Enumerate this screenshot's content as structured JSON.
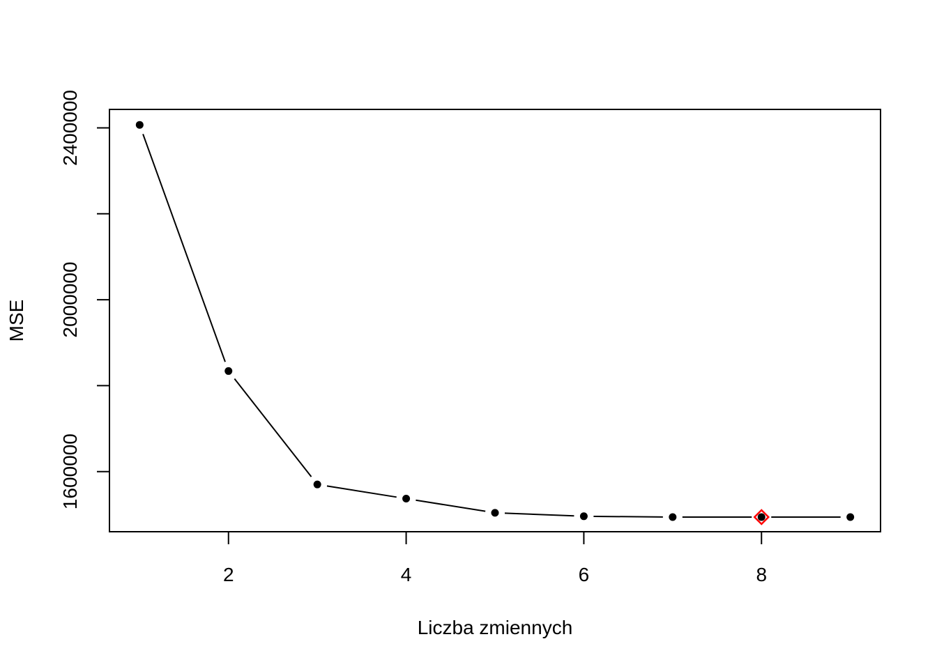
{
  "chart_data": {
    "type": "line",
    "title": "",
    "xlabel": "Liczba zmiennych",
    "ylabel": "MSE",
    "x": [
      1,
      2,
      3,
      4,
      5,
      6,
      7,
      8,
      9
    ],
    "y": [
      2407000,
      1834000,
      1570000,
      1537000,
      1504000,
      1496000,
      1494000,
      1494000,
      1494000
    ],
    "xlim": [
      0.66,
      9.34
    ],
    "ylim": [
      1460000,
      2443000
    ],
    "xticks": [
      2,
      4,
      6,
      8
    ],
    "xtick_labels": [
      "2",
      "4",
      "6",
      "8"
    ],
    "yticks": [
      1600000,
      1800000,
      2000000,
      2200000,
      2400000
    ],
    "ytick_labels": [
      "1600000",
      "",
      "2000000",
      "",
      "2400000"
    ],
    "highlight": {
      "x": 8,
      "y": 1494000,
      "marker": "diamond",
      "color": "#ff0000"
    },
    "line_color": "#000000",
    "point_color": "#000000",
    "grid": false,
    "legend": "none"
  }
}
